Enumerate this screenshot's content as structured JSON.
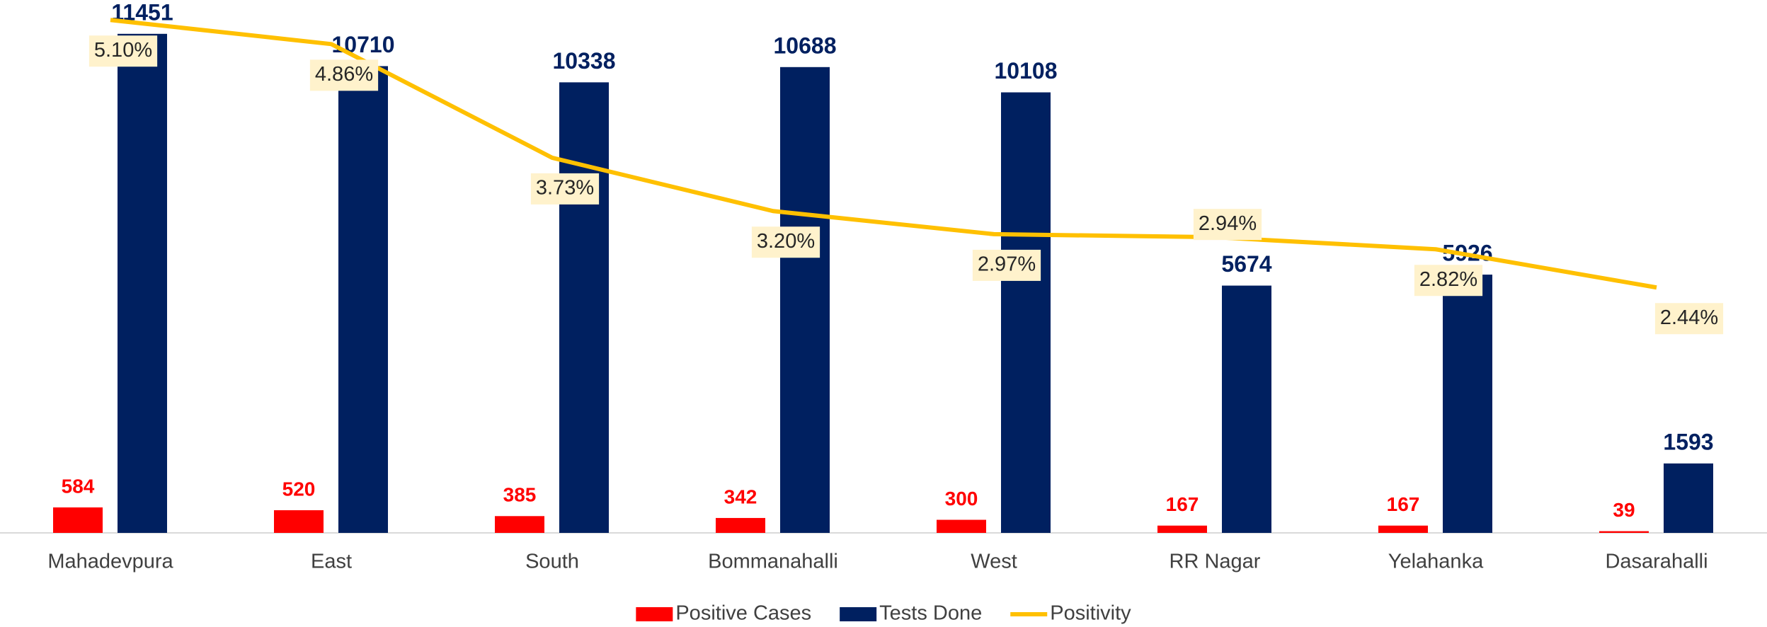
{
  "chart_data": {
    "type": "bar",
    "categories": [
      "Mahadevpura",
      "East",
      "South",
      "Bommanahalli",
      "West",
      "RR Nagar",
      "Yelahanka",
      "Dasarahalli"
    ],
    "series": [
      {
        "name": "Positive Cases",
        "color": "#ff0000",
        "values": [
          584,
          520,
          385,
          342,
          300,
          167,
          167,
          39
        ]
      },
      {
        "name": "Tests Done",
        "color": "#002060",
        "values": [
          11451,
          10710,
          10338,
          10688,
          10108,
          5674,
          5926,
          1593
        ]
      },
      {
        "name": "Positivity",
        "color": "#ffc000",
        "type": "line",
        "axis": "y2",
        "values": [
          5.1,
          4.86,
          3.73,
          3.2,
          2.97,
          2.94,
          2.82,
          2.44
        ],
        "value_labels": [
          "5.10%",
          "4.86%",
          "3.73%",
          "3.20%",
          "2.97%",
          "2.94%",
          "2.82%",
          "2.44%"
        ]
      }
    ],
    "ylim": [
      0,
      12000
    ],
    "y2lim": [
      0,
      5.2
    ],
    "legend": "bottom"
  }
}
